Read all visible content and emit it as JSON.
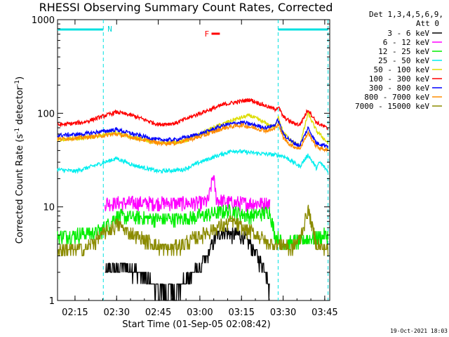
{
  "chart_data": {
    "type": "line",
    "title": "RHESSI Observing Summary Count Rates, Corrected",
    "xlabel": "Start Time (01-Sep-05 02:08:42)",
    "ylabel": "Corrected Count Rate (s",
    "ylabel_sup": "-1",
    "ylabel_mid": " detector",
    "ylabel_end": ")",
    "yscale": "log",
    "ylim": [
      1,
      1000
    ],
    "xlim": [
      2.145,
      3.78
    ],
    "x_ticks": [
      {
        "value": 2.25,
        "label": "02:15"
      },
      {
        "value": 2.5,
        "label": "02:30"
      },
      {
        "value": 2.75,
        "label": "02:45"
      },
      {
        "value": 3.0,
        "label": "03:00"
      },
      {
        "value": 3.25,
        "label": "03:15"
      },
      {
        "value": 3.5,
        "label": "03:30"
      },
      {
        "value": 3.75,
        "label": "03:45"
      }
    ],
    "y_ticks": [
      {
        "value": 1,
        "label": "1"
      },
      {
        "value": 10,
        "label": "10"
      },
      {
        "value": 100,
        "label": "100"
      },
      {
        "value": 1000,
        "label": "1000"
      }
    ],
    "legend": {
      "header": [
        "Det 1,3,4,5,6,9,",
        "Att 0"
      ],
      "placement": "right"
    },
    "annotations": {
      "night_label": "N",
      "flare_label": "F",
      "night_intervals": [
        [
          2.145,
          2.42
        ],
        [
          3.47,
          3.77
        ]
      ],
      "flare_interval": [
        3.07,
        3.12
      ],
      "vlines": [
        2.42,
        3.47,
        3.77
      ],
      "timestamp": "19-Oct-2021 18:03"
    },
    "series": [
      {
        "name": "3 - 6 keV",
        "color": "#000000",
        "x": [
          2.43,
          2.55,
          2.7,
          2.75,
          2.85,
          2.9,
          3.0,
          3.05,
          3.1,
          3.15,
          3.2,
          3.25,
          3.3,
          3.4,
          3.42
        ],
        "y": [
          2.0,
          2.4,
          1.6,
          1.2,
          1.3,
          1.5,
          2.2,
          3.2,
          5.0,
          5.5,
          5.0,
          5.0,
          4.0,
          2.0,
          1.2
        ]
      },
      {
        "name": "6 - 12 keV",
        "color": "#ff00ff",
        "x": [
          2.43,
          2.6,
          2.8,
          3.0,
          3.05,
          3.08,
          3.1,
          3.2,
          3.3,
          3.42
        ],
        "y": [
          11.0,
          11.0,
          11.0,
          11.0,
          11.5,
          22.0,
          12.0,
          11.0,
          11.0,
          11.0
        ]
      },
      {
        "name": "12 - 25 keV",
        "color": "#00ee00",
        "x": [
          2.145,
          2.25,
          2.4,
          2.5,
          2.7,
          2.9,
          3.0,
          3.15,
          3.2,
          3.3,
          3.42,
          3.45,
          3.5,
          3.77
        ],
        "y": [
          5.0,
          5.0,
          5.5,
          8.0,
          7.5,
          7.5,
          8.0,
          9.0,
          9.0,
          8.0,
          9.0,
          5.0,
          4.0,
          5.0
        ]
      },
      {
        "name": "25 - 50 keV",
        "color": "#00eeee",
        "x": [
          2.145,
          2.25,
          2.35,
          2.5,
          2.6,
          2.75,
          2.9,
          3.0,
          3.1,
          3.2,
          3.3,
          3.45,
          3.5,
          3.55,
          3.6,
          3.65,
          3.7,
          3.72,
          3.77
        ],
        "y": [
          25.0,
          24.0,
          27.0,
          33.0,
          28.0,
          24.0,
          25.0,
          30.0,
          35.0,
          40.0,
          38.0,
          36.0,
          35.0,
          31.0,
          27.0,
          36.0,
          26.0,
          30.0,
          24.0
        ]
      },
      {
        "name": "50 - 100 keV",
        "color": "#dddd00",
        "x": [
          2.145,
          2.3,
          2.5,
          2.6,
          2.75,
          2.9,
          3.0,
          3.1,
          3.2,
          3.3,
          3.45,
          3.47,
          3.5,
          3.55,
          3.6,
          3.65,
          3.7,
          3.77
        ],
        "y": [
          53.0,
          54.0,
          62.0,
          55.0,
          48.0,
          50.0,
          60.0,
          72.0,
          85.0,
          95.0,
          70.0,
          95.0,
          62.0,
          50.0,
          45.0,
          100.0,
          65.0,
          48.0
        ]
      },
      {
        "name": "100 - 300 keV",
        "color": "#ff0000",
        "x": [
          2.145,
          2.3,
          2.5,
          2.6,
          2.75,
          2.85,
          3.0,
          3.15,
          3.3,
          3.45,
          3.47,
          3.5,
          3.55,
          3.6,
          3.65,
          3.7,
          3.77
        ],
        "y": [
          75.0,
          80.0,
          103.0,
          94.0,
          76.0,
          78.0,
          100.0,
          125.0,
          140.0,
          110.0,
          118.0,
          92.0,
          80.0,
          75.0,
          110.0,
          80.0,
          68.0
        ]
      },
      {
        "name": "300 - 800 keV",
        "color": "#0000ff",
        "x": [
          2.145,
          2.3,
          2.5,
          2.6,
          2.75,
          2.85,
          3.0,
          3.15,
          3.25,
          3.4,
          3.45,
          3.47,
          3.5,
          3.55,
          3.6,
          3.65,
          3.7,
          3.77
        ],
        "y": [
          58.0,
          60.0,
          67.0,
          60.0,
          52.0,
          52.0,
          60.0,
          75.0,
          80.0,
          70.0,
          75.0,
          85.0,
          60.0,
          50.0,
          45.0,
          70.0,
          48.0,
          45.0
        ]
      },
      {
        "name": "800 - 7000 keV",
        "color": "#ff8c00",
        "x": [
          2.145,
          2.3,
          2.5,
          2.6,
          2.75,
          2.85,
          3.0,
          3.15,
          3.25,
          3.4,
          3.45,
          3.47,
          3.5,
          3.55,
          3.6,
          3.65,
          3.7,
          3.77
        ],
        "y": [
          53.0,
          55.0,
          60.0,
          55.0,
          48.0,
          48.0,
          56.0,
          70.0,
          75.0,
          65.0,
          68.0,
          78.0,
          55.0,
          45.0,
          42.0,
          62.0,
          44.0,
          40.0
        ]
      },
      {
        "name": "7000 - 15000 keV",
        "color": "#8b8b00",
        "x": [
          2.145,
          2.3,
          2.5,
          2.6,
          2.8,
          2.9,
          3.0,
          3.1,
          3.2,
          3.25,
          3.35,
          3.42,
          3.5,
          3.55,
          3.6,
          3.65,
          3.7,
          3.77
        ],
        "y": [
          3.5,
          3.5,
          6.5,
          5.0,
          3.5,
          4.0,
          5.0,
          6.0,
          7.0,
          6.0,
          5.0,
          4.0,
          4.0,
          3.5,
          4.5,
          9.5,
          4.0,
          3.5
        ]
      }
    ]
  }
}
